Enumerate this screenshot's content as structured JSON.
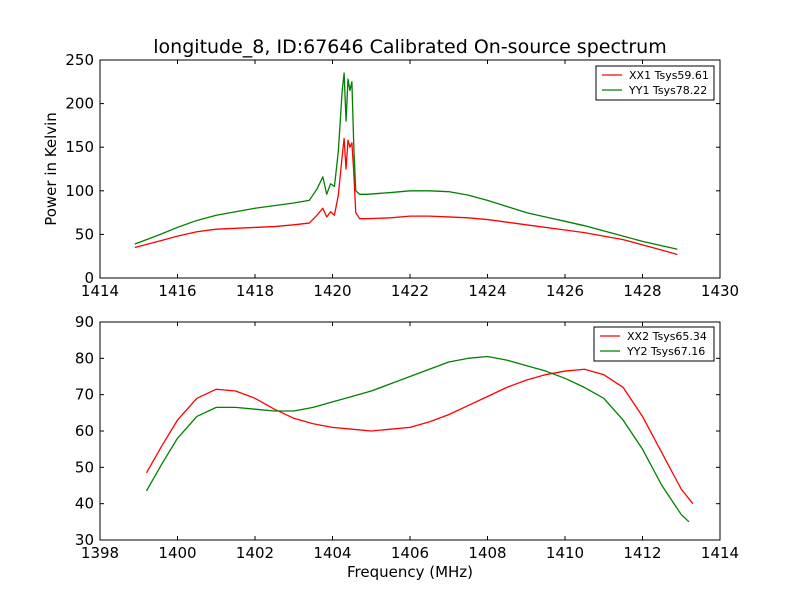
{
  "figure": {
    "title": "longitude_8, ID:67646 Calibrated On-source spectrum",
    "shared_ylabel": "Power in Kelvin",
    "shared_xlabel": "Frequency (MHz)"
  },
  "chart_data": [
    {
      "type": "line",
      "title": "longitude_8, ID:67646 Calibrated On-source spectrum",
      "xlabel": "",
      "ylabel": "Power in Kelvin",
      "xlim": [
        1414,
        1430
      ],
      "ylim": [
        0,
        250
      ],
      "xticks": [
        1414,
        1416,
        1418,
        1420,
        1422,
        1424,
        1426,
        1428,
        1430
      ],
      "yticks": [
        0,
        50,
        100,
        150,
        200,
        250
      ],
      "grid": false,
      "legend_position": "top-right",
      "series": [
        {
          "name": "XX1 Tsys59.61",
          "color": "#ff0000",
          "x": [
            1414.9,
            1415.5,
            1416.0,
            1416.5,
            1417.0,
            1417.5,
            1418.0,
            1418.5,
            1419.0,
            1419.4,
            1419.6,
            1419.75,
            1419.85,
            1419.95,
            1420.05,
            1420.15,
            1420.25,
            1420.3,
            1420.35,
            1420.4,
            1420.45,
            1420.5,
            1420.55,
            1420.6,
            1420.7,
            1420.9,
            1421.5,
            1422.0,
            1422.5,
            1423.0,
            1423.5,
            1424.0,
            1424.5,
            1425.0,
            1425.5,
            1426.0,
            1426.5,
            1427.0,
            1427.5,
            1428.0,
            1428.5,
            1428.9
          ],
          "y": [
            35,
            42,
            48,
            53,
            56,
            57,
            58,
            59,
            61,
            63,
            72,
            80,
            70,
            76,
            72,
            95,
            140,
            160,
            125,
            158,
            150,
            155,
            120,
            75,
            68,
            68,
            69,
            71,
            71,
            70,
            69,
            67,
            64,
            61,
            58,
            55,
            52,
            48,
            44,
            38,
            32,
            27
          ]
        },
        {
          "name": "YY1 Tsys78.22",
          "color": "#008000",
          "x": [
            1414.9,
            1415.5,
            1416.0,
            1416.5,
            1417.0,
            1417.5,
            1418.0,
            1418.5,
            1419.0,
            1419.4,
            1419.6,
            1419.75,
            1419.85,
            1419.95,
            1420.05,
            1420.15,
            1420.25,
            1420.3,
            1420.35,
            1420.4,
            1420.45,
            1420.5,
            1420.55,
            1420.6,
            1420.7,
            1420.9,
            1421.5,
            1422.0,
            1422.5,
            1423.0,
            1423.5,
            1424.0,
            1424.5,
            1425.0,
            1425.5,
            1426.0,
            1426.5,
            1427.0,
            1427.5,
            1428.0,
            1428.5,
            1428.9
          ],
          "y": [
            39,
            49,
            58,
            66,
            72,
            76,
            80,
            83,
            86,
            89,
            102,
            116,
            96,
            108,
            105,
            145,
            215,
            235,
            180,
            228,
            215,
            225,
            150,
            100,
            96,
            96,
            98,
            100,
            100,
            99,
            95,
            89,
            82,
            75,
            70,
            65,
            60,
            54,
            48,
            42,
            37,
            33
          ]
        }
      ]
    },
    {
      "type": "line",
      "title": "",
      "xlabel": "Frequency (MHz)",
      "ylabel": "",
      "xlim": [
        1398,
        1414
      ],
      "ylim": [
        30,
        90
      ],
      "xticks": [
        1398,
        1400,
        1402,
        1404,
        1406,
        1408,
        1410,
        1412,
        1414
      ],
      "yticks": [
        30,
        40,
        50,
        60,
        70,
        80,
        90
      ],
      "grid": false,
      "legend_position": "top-right",
      "series": [
        {
          "name": "XX2 Tsys65.34",
          "color": "#ff0000",
          "x": [
            1399.2,
            1399.6,
            1400.0,
            1400.5,
            1401.0,
            1401.5,
            1402.0,
            1402.5,
            1403.0,
            1403.5,
            1404.0,
            1404.5,
            1405.0,
            1405.5,
            1406.0,
            1406.5,
            1407.0,
            1407.5,
            1408.0,
            1408.5,
            1409.0,
            1409.5,
            1410.0,
            1410.5,
            1411.0,
            1411.5,
            1412.0,
            1412.5,
            1413.0,
            1413.3
          ],
          "y": [
            48.5,
            56,
            63,
            69,
            71.5,
            71,
            69,
            66,
            63.5,
            62,
            61,
            60.5,
            60,
            60.5,
            61,
            62.5,
            64.5,
            67,
            69.5,
            72,
            74,
            75.5,
            76.5,
            77,
            75.5,
            72,
            64,
            54,
            44,
            40
          ]
        },
        {
          "name": "YY2 Tsys67.16",
          "color": "#008000",
          "x": [
            1399.2,
            1399.6,
            1400.0,
            1400.5,
            1401.0,
            1401.5,
            1402.0,
            1402.5,
            1403.0,
            1403.5,
            1404.0,
            1404.5,
            1405.0,
            1405.5,
            1406.0,
            1406.5,
            1407.0,
            1407.5,
            1408.0,
            1408.5,
            1409.0,
            1409.5,
            1410.0,
            1410.5,
            1411.0,
            1411.5,
            1412.0,
            1412.5,
            1413.0,
            1413.2
          ],
          "y": [
            43.5,
            51,
            58,
            64,
            66.5,
            66.5,
            66,
            65.5,
            65.5,
            66.5,
            68,
            69.5,
            71,
            73,
            75,
            77,
            79,
            80,
            80.5,
            79.5,
            78,
            76.5,
            74.5,
            72,
            69,
            63,
            55,
            45,
            37,
            35
          ]
        }
      ]
    }
  ]
}
